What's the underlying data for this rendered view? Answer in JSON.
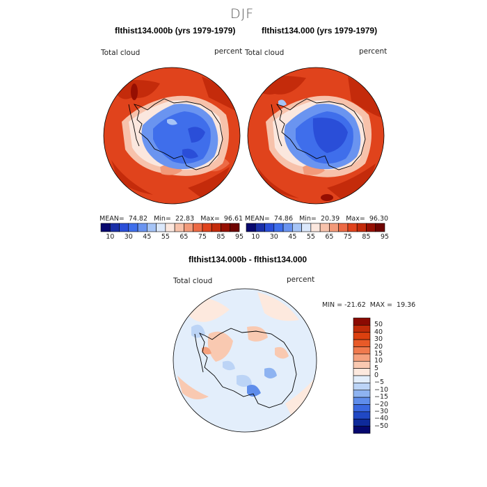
{
  "figure": {
    "season": "DJF",
    "variable_label": "Total cloud",
    "units_label": "percent"
  },
  "panels": [
    {
      "title": "flthist134.000b (yrs 1979-1979)",
      "stats": {
        "mean_label": "MEAN=",
        "mean": "74.82",
        "min_label": "Min=",
        "min": "22.83",
        "max_label": "Max=",
        "max": "96.61"
      }
    },
    {
      "title": "flthist134.000 (yrs 1979-1979)",
      "stats": {
        "mean_label": "MEAN=",
        "mean": "74.86",
        "min_label": "Min=",
        "min": "20.39",
        "max_label": "Max=",
        "max": "96.30"
      }
    }
  ],
  "colorbar_top": {
    "colors": [
      "#08086e",
      "#1a2fa8",
      "#2a4ed8",
      "#3f6eeb",
      "#6a94f0",
      "#a6c4f6",
      "#dbe8fb",
      "#fbe7de",
      "#f7c2ab",
      "#f29a7a",
      "#ec6a45",
      "#e0431c",
      "#c42b0b",
      "#960f02",
      "#6e0401"
    ],
    "tick_labels": [
      "10",
      "30",
      "45",
      "55",
      "65",
      "75",
      "85",
      "95"
    ]
  },
  "difference": {
    "title": "flthist134.000b - flthist134.000",
    "min_label": "MIN =",
    "min": "-21.62",
    "max_label": "MAX =",
    "max": "19.36",
    "colorbar": {
      "colors": [
        "#8b0a02",
        "#c02b09",
        "#dc400f",
        "#e85a28",
        "#f07a4e",
        "#f5a17e",
        "#f9c9b1",
        "#fde9de",
        "#e3eefb",
        "#bcd4f6",
        "#8eb3f1",
        "#5f8deb",
        "#3a68e0",
        "#2048c4",
        "#0e2a9a",
        "#05086e"
      ],
      "tick_labels": [
        "50",
        "40",
        "30",
        "20",
        "15",
        "10",
        "5",
        "0",
        "−5",
        "−10",
        "−15",
        "−20",
        "−30",
        "−40",
        "−50"
      ]
    }
  }
}
